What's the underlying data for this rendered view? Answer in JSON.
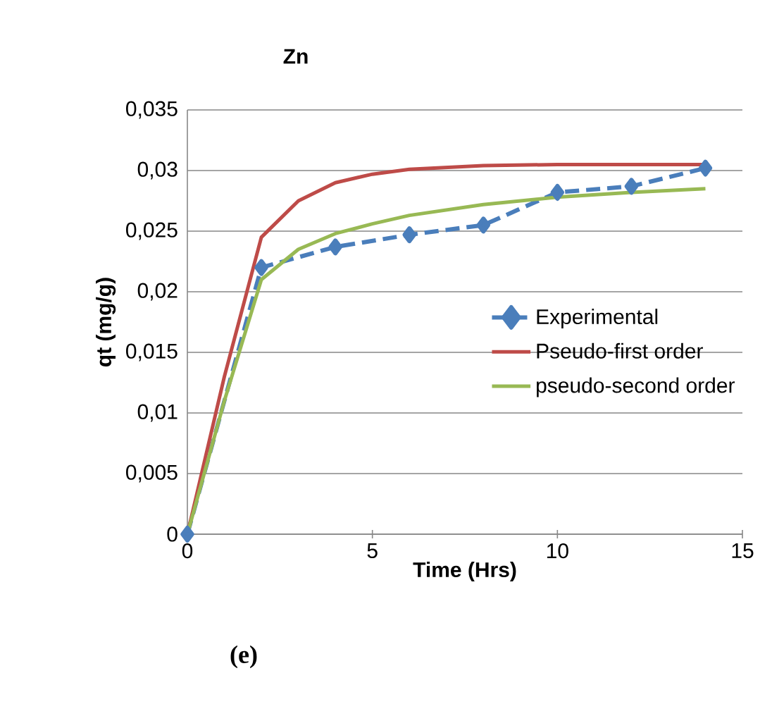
{
  "chart_data": {
    "type": "line",
    "title": "Zn",
    "xlabel": "Time (Hrs)",
    "ylabel": "qt (mg/g)",
    "annotations": [
      "(e)"
    ],
    "xlim": [
      0,
      15
    ],
    "xticks": [
      0,
      5,
      10,
      15
    ],
    "ylim": [
      0,
      0.035
    ],
    "yticks": [
      0,
      {
        "value": 0.005,
        "label": "0,005"
      },
      {
        "value": 0.01,
        "label": "0,01"
      },
      {
        "value": 0.015,
        "label": "0,015"
      },
      {
        "value": 0.02,
        "label": "0,02"
      },
      {
        "value": 0.025,
        "label": "0,025"
      },
      {
        "value": 0.03,
        "label": "0,03"
      },
      {
        "value": 0.035,
        "label": "0,035"
      }
    ],
    "grid": "y",
    "legend": "right",
    "series": [
      {
        "name": "Experimental",
        "color": "#4a7ebb",
        "marker": "diamond",
        "line_style": "dashed",
        "x": [
          0,
          2,
          4,
          6,
          8,
          10,
          12,
          14
        ],
        "values": [
          0,
          0.022,
          0.0237,
          0.0247,
          0.0255,
          0.0282,
          0.0287,
          0.0302
        ]
      },
      {
        "name": "Pseudo-first order",
        "color": "#be4b48",
        "marker": "none",
        "line_style": "solid",
        "x": [
          0,
          1,
          2,
          3,
          4,
          5,
          6,
          8,
          10,
          14
        ],
        "values": [
          0,
          0.013,
          0.0245,
          0.0275,
          0.029,
          0.0297,
          0.0301,
          0.0304,
          0.0305,
          0.0305
        ]
      },
      {
        "name": "pseudo-second order",
        "color": "#98b954",
        "marker": "none",
        "line_style": "solid",
        "x": [
          0,
          1,
          2,
          3,
          4,
          5,
          6,
          8,
          10,
          12,
          14
        ],
        "values": [
          0,
          0.011,
          0.021,
          0.0235,
          0.0248,
          0.0256,
          0.0263,
          0.0272,
          0.0278,
          0.0282,
          0.0285
        ]
      }
    ]
  }
}
